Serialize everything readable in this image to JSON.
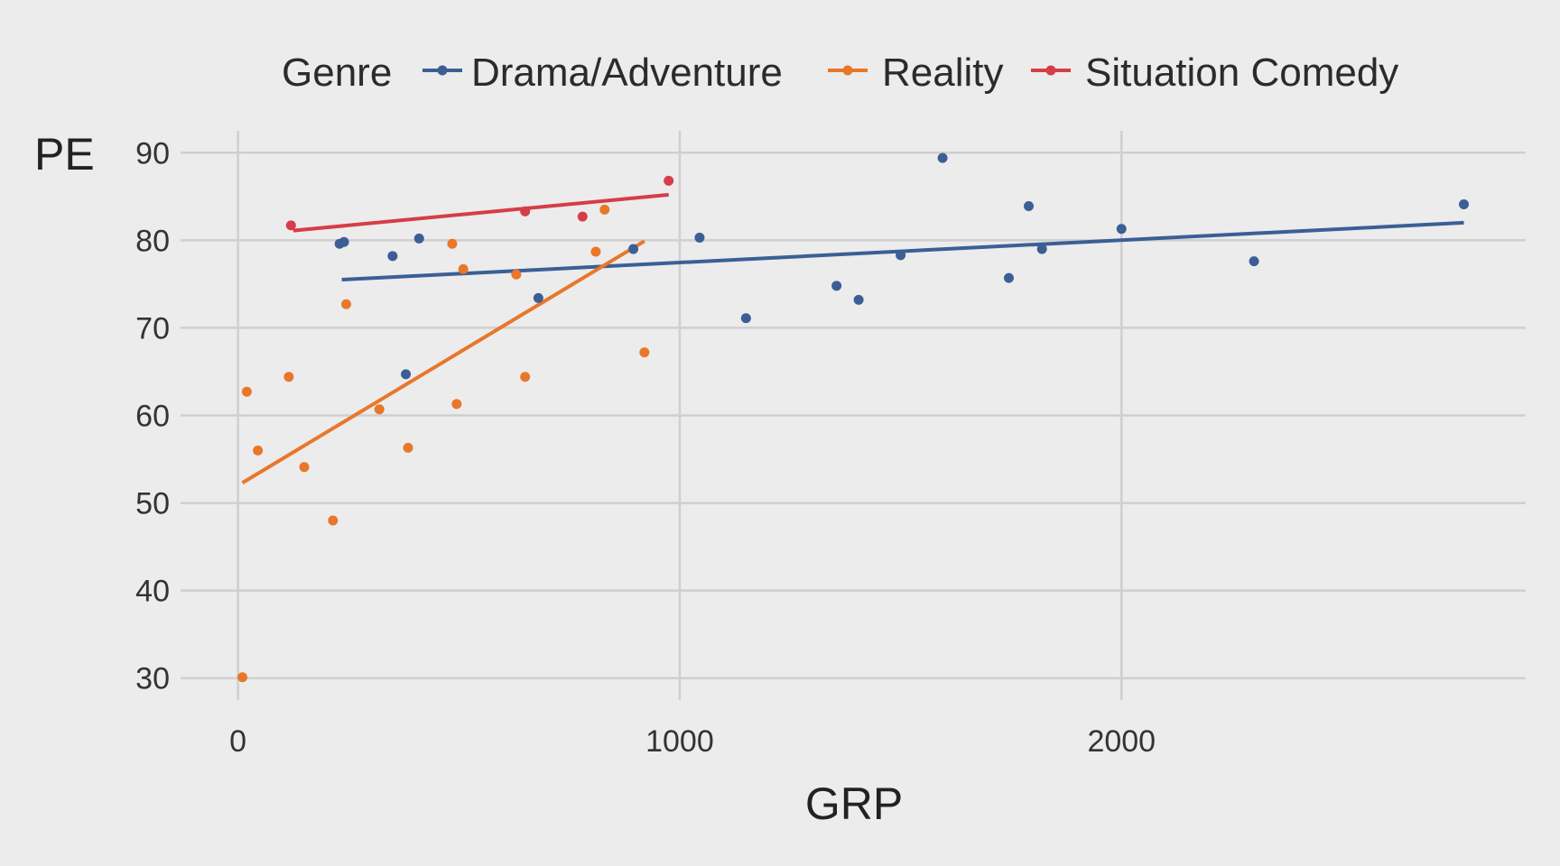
{
  "chart_data": {
    "type": "scatter",
    "title": "",
    "xlabel": "GRP",
    "ylabel": "PE",
    "xlim": [
      -130,
      2915
    ],
    "ylim": [
      27.5,
      92.5
    ],
    "x_ticks": [
      0,
      1000,
      2000
    ],
    "y_ticks": [
      30,
      40,
      50,
      60,
      70,
      80,
      90
    ],
    "grid": true,
    "legend_title": "Genre",
    "legend_position": "top",
    "series": [
      {
        "name": "Drama/Adventure",
        "color": "#3b5f95",
        "points": [
          [
            230,
            79.6
          ],
          [
            240,
            79.8
          ],
          [
            350,
            78.2
          ],
          [
            380,
            64.7
          ],
          [
            410,
            80.2
          ],
          [
            680,
            73.4
          ],
          [
            895,
            79.0
          ],
          [
            1045,
            80.3
          ],
          [
            1150,
            71.1
          ],
          [
            1355,
            74.8
          ],
          [
            1405,
            73.2
          ],
          [
            1500,
            78.3
          ],
          [
            1595,
            89.4
          ],
          [
            1745,
            75.7
          ],
          [
            1790,
            83.9
          ],
          [
            1820,
            79.0
          ],
          [
            2000,
            81.3
          ],
          [
            2300,
            77.6
          ],
          [
            2775,
            84.1
          ]
        ],
        "trend": [
          [
            235,
            75.5
          ],
          [
            2775,
            82.0
          ]
        ]
      },
      {
        "name": "Reality",
        "color": "#e8772a",
        "points": [
          [
            10,
            30.1
          ],
          [
            20,
            62.7
          ],
          [
            45,
            56.0
          ],
          [
            115,
            64.4
          ],
          [
            150,
            54.1
          ],
          [
            215,
            48.0
          ],
          [
            245,
            72.7
          ],
          [
            320,
            60.7
          ],
          [
            385,
            56.3
          ],
          [
            485,
            79.6
          ],
          [
            495,
            61.3
          ],
          [
            510,
            76.7
          ],
          [
            630,
            76.1
          ],
          [
            650,
            64.4
          ],
          [
            810,
            78.7
          ],
          [
            830,
            83.5
          ],
          [
            920,
            67.2
          ]
        ],
        "trend": [
          [
            10,
            52.3
          ],
          [
            920,
            79.9
          ]
        ]
      },
      {
        "name": "Situation Comedy",
        "color": "#d63d46",
        "points": [
          [
            120,
            81.7
          ],
          [
            650,
            83.3
          ],
          [
            780,
            82.7
          ],
          [
            975,
            86.8
          ]
        ],
        "trend": [
          [
            125,
            81.1
          ],
          [
            975,
            85.2
          ]
        ]
      }
    ]
  }
}
